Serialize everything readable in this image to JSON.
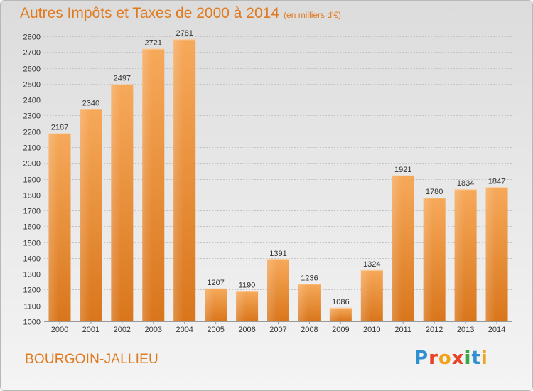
{
  "chart_data": {
    "type": "bar",
    "title": "Autres Impôts et Taxes de 2000 à 2014",
    "subtitle": "(en milliers d'€)",
    "categories": [
      "2000",
      "2001",
      "2002",
      "2003",
      "2004",
      "2005",
      "2006",
      "2007",
      "2008",
      "2009",
      "2010",
      "2011",
      "2012",
      "2013",
      "2014"
    ],
    "values": [
      2187,
      2340,
      2497,
      2721,
      2781,
      1207,
      1190,
      1391,
      1236,
      1086,
      1324,
      1921,
      1780,
      1834,
      1847
    ],
    "ylim": [
      1000,
      2800
    ],
    "yticks": [
      1000,
      1100,
      1200,
      1300,
      1400,
      1500,
      1600,
      1700,
      1800,
      1900,
      2000,
      2100,
      2200,
      2300,
      2400,
      2500,
      2600,
      2700,
      2800
    ],
    "grid": true,
    "bar_color": "#f0902a"
  },
  "footer": {
    "town": "BOURGOIN-JALLIEU",
    "logo_text": "Proxiti"
  }
}
